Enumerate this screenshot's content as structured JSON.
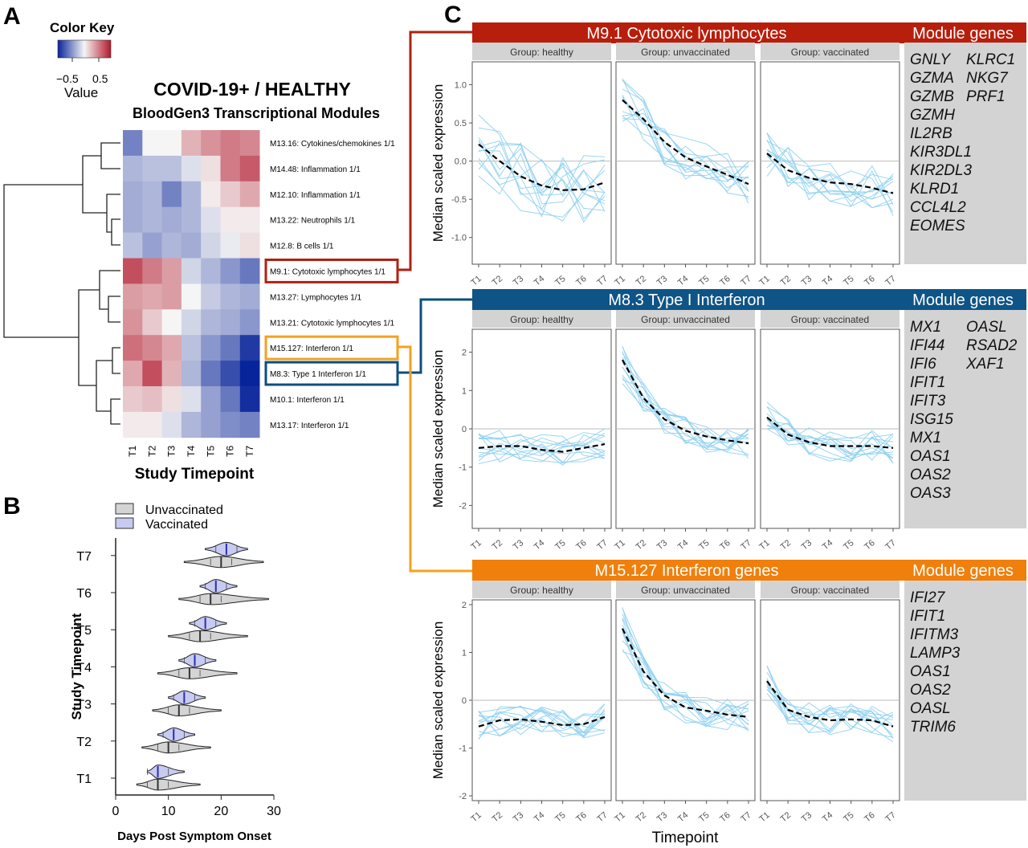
{
  "panel_letters": {
    "a": "A",
    "b": "B",
    "c": "C"
  },
  "panel_a": {
    "color_key": {
      "title": "Color Key",
      "ticks": [
        "−0.5",
        "0.5"
      ],
      "label": "Value",
      "colors": {
        "low": "#08249a",
        "mid": "#f5f5f5",
        "high": "#b2182b"
      }
    },
    "title": "COVID-19+ / HEALTHY",
    "subtitle": "BloodGen3 Transcriptional Modules",
    "xlabel": "Study Timepoint"
  },
  "panel_b": {
    "legend": [
      {
        "name": "Unvaccinated",
        "color": "#d4d4d4"
      },
      {
        "name": "Vaccinated",
        "color": "#c7cbf2"
      }
    ]
  },
  "panel_c": {
    "header_right": "Module genes",
    "ylabel": "Median scaled expression",
    "xlabel": "Timepoint",
    "group_prefix": "Group: "
  },
  "chart_data": [
    {
      "type": "heatmap",
      "columns": [
        "T1",
        "T2",
        "T3",
        "T4",
        "T5",
        "T6",
        "T7"
      ],
      "rows": [
        "M13.16: Cytokines/chemokines 1/1",
        "M14.48: Inflammation 1/1",
        "M12.10: Inflammation 1/1",
        "M13.22: Neutrophils 1/1",
        "M12.8: B cells 1/1",
        "M9.1: Cytotoxic lymphocytes 1/1",
        "M13.27: Lymphocytes 1/1",
        "M13.21: Cytotoxic lymphocytes 1/1",
        "M15.127: Interferon 1/1",
        "M8.3: Type 1 Interferon 1/1",
        "M10.1: Interferon 1/1",
        "M13.17: Interferon 1/1"
      ],
      "values": [
        [
          -0.55,
          0.0,
          0.0,
          0.3,
          0.45,
          0.55,
          0.5
        ],
        [
          -0.3,
          -0.25,
          -0.25,
          -0.1,
          0.1,
          0.55,
          0.7
        ],
        [
          -0.35,
          -0.3,
          -0.55,
          -0.3,
          0.05,
          0.2,
          0.35
        ],
        [
          -0.35,
          -0.3,
          -0.35,
          -0.3,
          -0.1,
          0.05,
          0.05
        ],
        [
          -0.25,
          -0.4,
          -0.3,
          -0.35,
          -0.15,
          -0.05,
          0.1
        ],
        [
          0.75,
          0.55,
          0.4,
          -0.15,
          -0.3,
          -0.45,
          -0.6
        ],
        [
          0.4,
          0.35,
          0.4,
          0.0,
          -0.2,
          -0.3,
          -0.35
        ],
        [
          0.45,
          0.2,
          0.0,
          -0.15,
          -0.3,
          -0.35,
          -0.45
        ],
        [
          0.6,
          0.5,
          0.35,
          -0.25,
          -0.45,
          -0.6,
          -0.9
        ],
        [
          0.35,
          0.75,
          0.3,
          -0.3,
          -0.6,
          -0.8,
          -1.0
        ],
        [
          0.2,
          0.25,
          0.1,
          -0.1,
          -0.4,
          -0.6,
          -0.95
        ],
        [
          0.05,
          0.05,
          -0.1,
          -0.3,
          -0.4,
          -0.5,
          -0.55
        ]
      ],
      "highlighted_rows": [
        {
          "row": "M9.1: Cytotoxic lymphocytes 1/1",
          "color": "#b22010"
        },
        {
          "row": "M15.127: Interferon 1/1",
          "color": "#f5a11f"
        },
        {
          "row": "M8.3: Type 1 Interferon 1/1",
          "color": "#0b4f7e"
        }
      ]
    },
    {
      "type": "violin",
      "ylabel": "Study Timepoint",
      "xlabel": "Days Post Symptom Onset",
      "xlim": [
        0,
        30
      ],
      "xticks": [
        0,
        10,
        20,
        30
      ],
      "categories": [
        "T1",
        "T2",
        "T3",
        "T4",
        "T5",
        "T6",
        "T7"
      ],
      "series": [
        {
          "name": "Unvaccinated",
          "medians": [
            8,
            10,
            12,
            14,
            16,
            18,
            20
          ],
          "ranges": [
            [
              4,
              16
            ],
            [
              5,
              18
            ],
            [
              7,
              20
            ],
            [
              8,
              23
            ],
            [
              10,
              25
            ],
            [
              12,
              29
            ],
            [
              13,
              28
            ]
          ]
        },
        {
          "name": "Vaccinated",
          "medians": [
            8,
            11,
            13,
            15,
            17,
            19,
            21
          ],
          "ranges": [
            [
              6,
              13
            ],
            [
              8,
              15
            ],
            [
              10,
              17
            ],
            [
              12,
              19
            ],
            [
              14,
              21
            ],
            [
              16,
              23
            ],
            [
              17,
              25
            ]
          ]
        }
      ]
    },
    {
      "type": "line",
      "module": "M9.1",
      "name": "Cytotoxic lymphocytes",
      "header_color": "#b81e0c",
      "groups": [
        "healthy",
        "unvaccinated",
        "vaccinated"
      ],
      "x": [
        "T1",
        "T2",
        "T3",
        "T4",
        "T5",
        "T6",
        "T7"
      ],
      "ylim": [
        -1.35,
        1.3
      ],
      "yticks": [
        -1.0,
        -0.5,
        0.0,
        0.5,
        1.0
      ],
      "ytick_labels": [
        "-1.0",
        "-0.5",
        "0.0",
        "0.5",
        "1.0"
      ],
      "trend": [
        [
          0.22,
          0.0,
          -0.2,
          -0.32,
          -0.38,
          -0.37,
          -0.28
        ],
        [
          0.8,
          0.55,
          0.25,
          0.05,
          -0.07,
          -0.18,
          -0.3
        ],
        [
          0.1,
          -0.12,
          -0.22,
          -0.28,
          -0.3,
          -0.35,
          -0.42
        ]
      ],
      "genes": [
        "GNLY",
        "KLRC1",
        "GZMA",
        "NKG7",
        "GZMB",
        "PRF1",
        "GZMH",
        "IL2RB",
        "KIR3DL1",
        "KIR2DL3",
        "KLRD1",
        "CCL4L2",
        "EOMES"
      ]
    },
    {
      "type": "line",
      "module": "M8.3",
      "name": "Type I Interferon",
      "header_color": "#0e5486",
      "groups": [
        "healthy",
        "unvaccinated",
        "vaccinated"
      ],
      "x": [
        "T1",
        "T2",
        "T3",
        "T4",
        "T5",
        "T6",
        "T7"
      ],
      "ylim": [
        -2.6,
        2.6
      ],
      "yticks": [
        -2,
        -1,
        0,
        1,
        2
      ],
      "ytick_labels": [
        "-2",
        "-1",
        "0",
        "1",
        "2"
      ],
      "trend": [
        [
          -0.5,
          -0.45,
          -0.45,
          -0.55,
          -0.6,
          -0.5,
          -0.4
        ],
        [
          1.8,
          0.8,
          0.25,
          -0.05,
          -0.2,
          -0.3,
          -0.38
        ],
        [
          0.3,
          -0.15,
          -0.35,
          -0.45,
          -0.45,
          -0.45,
          -0.5
        ]
      ],
      "genes": [
        "MX1",
        "OASL",
        "IFI44",
        "RSAD2",
        "IFI6",
        "XAF1",
        "IFIT1",
        "IFIT3",
        "ISG15",
        "MX1",
        "OAS1",
        "OAS2",
        "OAS3"
      ]
    },
    {
      "type": "line",
      "module": "M15.127",
      "name": "Interferon genes",
      "header_color": "#f07f0b",
      "groups": [
        "healthy",
        "unvaccinated",
        "vaccinated"
      ],
      "x": [
        "T1",
        "T2",
        "T3",
        "T4",
        "T5",
        "T6",
        "T7"
      ],
      "ylim": [
        -2.1,
        2.1
      ],
      "yticks": [
        -2,
        -1,
        0,
        1,
        2
      ],
      "ytick_labels": [
        "-2",
        "-1",
        "0",
        "1",
        "2"
      ],
      "trend": [
        [
          -0.55,
          -0.42,
          -0.4,
          -0.45,
          -0.52,
          -0.5,
          -0.35
        ],
        [
          1.5,
          0.6,
          0.1,
          -0.15,
          -0.22,
          -0.3,
          -0.35
        ],
        [
          0.4,
          -0.2,
          -0.35,
          -0.42,
          -0.4,
          -0.42,
          -0.55
        ]
      ],
      "genes": [
        "IFI27",
        "IFIT1",
        "IFITM3",
        "LAMP3",
        "OAS1",
        "OAS2",
        "OASL",
        "TRIM6"
      ]
    }
  ]
}
